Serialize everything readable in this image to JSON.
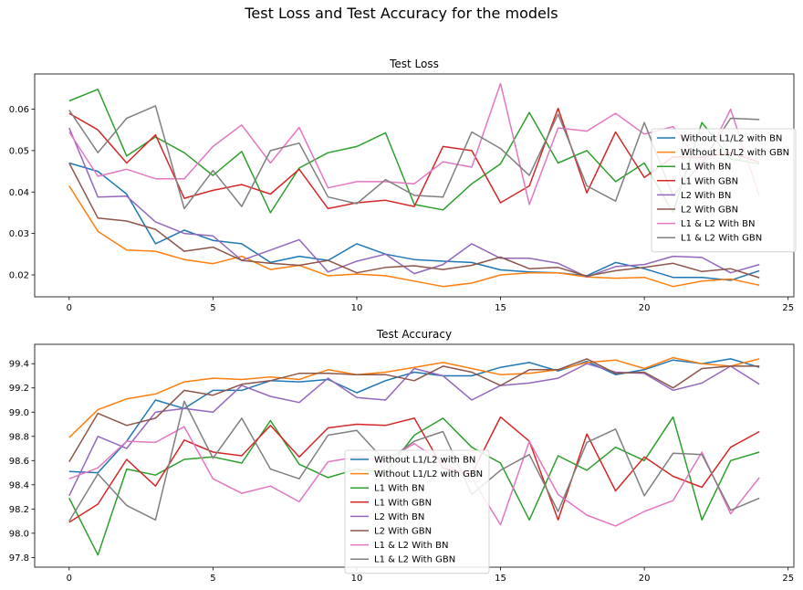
{
  "figure": {
    "suptitle": "Test Loss and Test Accuracy for the models"
  },
  "colors": [
    "#1f77b4",
    "#ff7f0e",
    "#2ca02c",
    "#d62728",
    "#9467bd",
    "#8c564b",
    "#e377c2",
    "#7f7f7f"
  ],
  "chart_data": [
    {
      "type": "line",
      "title": "Test Loss",
      "xlabel": "",
      "ylabel": "",
      "xlim": [
        -1.2,
        25.2
      ],
      "ylim": [
        0.0147,
        0.0685
      ],
      "xticks": [
        0,
        5,
        10,
        15,
        20,
        25
      ],
      "yticks": [
        0.02,
        0.03,
        0.04,
        0.05,
        0.06
      ],
      "ytick_labels": [
        "0.02",
        "0.03",
        "0.04",
        "0.05",
        "0.06"
      ],
      "legend": "center-right",
      "grid": false,
      "x": [
        0,
        1,
        2,
        3,
        4,
        5,
        6,
        7,
        8,
        9,
        10,
        11,
        12,
        13,
        14,
        15,
        16,
        17,
        18,
        19,
        20,
        21,
        22,
        23,
        24
      ],
      "series": [
        {
          "name": "Without L1/L2 with BN",
          "values": [
            0.047,
            0.045,
            0.0395,
            0.0275,
            0.0308,
            0.0283,
            0.0275,
            0.023,
            0.0245,
            0.0235,
            0.0275,
            0.025,
            0.0237,
            0.0233,
            0.023,
            0.0212,
            0.0207,
            0.0205,
            0.0198,
            0.023,
            0.0215,
            0.0194,
            0.0194,
            0.0187,
            0.021
          ]
        },
        {
          "name": "Without L1/L2 with GBN",
          "values": [
            0.0415,
            0.0305,
            0.026,
            0.0257,
            0.0237,
            0.0227,
            0.0245,
            0.0213,
            0.0223,
            0.0198,
            0.0202,
            0.0198,
            0.0185,
            0.0172,
            0.018,
            0.02,
            0.0205,
            0.0205,
            0.0195,
            0.0192,
            0.0194,
            0.0172,
            0.0185,
            0.019,
            0.0175
          ]
        },
        {
          "name": "L1 With BN",
          "values": [
            0.062,
            0.0648,
            0.0487,
            0.0533,
            0.0495,
            0.044,
            0.0498,
            0.035,
            0.0458,
            0.0495,
            0.051,
            0.0543,
            0.037,
            0.0357,
            0.042,
            0.0468,
            0.0592,
            0.047,
            0.05,
            0.0425,
            0.047,
            0.035,
            0.0568,
            0.048,
            0.0468
          ]
        },
        {
          "name": "L1 With GBN",
          "values": [
            0.059,
            0.055,
            0.047,
            0.0538,
            0.0385,
            0.0404,
            0.0418,
            0.0395,
            0.0455,
            0.036,
            0.0374,
            0.038,
            0.0365,
            0.051,
            0.05,
            0.0374,
            0.0415,
            0.0602,
            0.0398,
            0.0545,
            0.0435,
            0.0485,
            0.0484,
            0.0495,
            0.0472
          ]
        },
        {
          "name": "L2 With BN",
          "values": [
            0.0555,
            0.0388,
            0.039,
            0.0328,
            0.03,
            0.0294,
            0.0235,
            0.026,
            0.0285,
            0.0207,
            0.0233,
            0.025,
            0.0203,
            0.0225,
            0.0275,
            0.024,
            0.024,
            0.0228,
            0.0195,
            0.022,
            0.0225,
            0.0245,
            0.0242,
            0.0205,
            0.0225
          ]
        },
        {
          "name": "L2 With GBN",
          "values": [
            0.047,
            0.0337,
            0.033,
            0.031,
            0.0257,
            0.0267,
            0.0235,
            0.0228,
            0.0223,
            0.0235,
            0.0205,
            0.0218,
            0.0222,
            0.0213,
            0.0223,
            0.0243,
            0.0215,
            0.0218,
            0.0197,
            0.021,
            0.0218,
            0.0228,
            0.0208,
            0.0215,
            0.0193
          ]
        },
        {
          "name": "L1 & L2 With BN",
          "values": [
            0.0545,
            0.0438,
            0.0455,
            0.0432,
            0.0432,
            0.051,
            0.0562,
            0.047,
            0.0556,
            0.041,
            0.0425,
            0.0425,
            0.042,
            0.0473,
            0.046,
            0.0662,
            0.037,
            0.0555,
            0.0547,
            0.059,
            0.054,
            0.0558,
            0.0462,
            0.06,
            0.039
          ]
        },
        {
          "name": "L1 & L2 With GBN",
          "values": [
            0.0598,
            0.0495,
            0.0578,
            0.0608,
            0.036,
            0.0452,
            0.0365,
            0.05,
            0.0518,
            0.0388,
            0.0372,
            0.043,
            0.0392,
            0.0388,
            0.0545,
            0.0505,
            0.044,
            0.0588,
            0.0415,
            0.0378,
            0.0568,
            0.039,
            0.0472,
            0.0578,
            0.0575
          ]
        }
      ]
    },
    {
      "type": "line",
      "title": "Test Accuracy",
      "xlabel": "",
      "ylabel": "",
      "xlim": [
        -1.2,
        25.2
      ],
      "ylim": [
        97.72,
        99.56
      ],
      "xticks": [
        0,
        5,
        10,
        15,
        20,
        25
      ],
      "yticks": [
        97.8,
        98.0,
        98.2,
        98.4,
        98.6,
        98.8,
        99.0,
        99.2,
        99.4
      ],
      "ytick_labels": [
        "97.8",
        "98.0",
        "98.2",
        "98.4",
        "98.6",
        "98.8",
        "99.0",
        "99.2",
        "99.4"
      ],
      "legend": "lower-center",
      "grid": false,
      "x": [
        0,
        1,
        2,
        3,
        4,
        5,
        6,
        7,
        8,
        9,
        10,
        11,
        12,
        13,
        14,
        15,
        16,
        17,
        18,
        19,
        20,
        21,
        22,
        23,
        24
      ],
      "series": [
        {
          "name": "Without L1/L2 with BN",
          "values": [
            98.51,
            98.5,
            98.76,
            99.1,
            99.03,
            99.18,
            99.18,
            99.26,
            99.25,
            99.27,
            99.16,
            99.26,
            99.33,
            99.3,
            99.3,
            99.37,
            99.41,
            99.34,
            99.42,
            99.31,
            99.35,
            99.43,
            99.4,
            99.44,
            99.37
          ]
        },
        {
          "name": "Without L1/L2 with GBN",
          "values": [
            98.79,
            99.02,
            99.11,
            99.15,
            99.25,
            99.28,
            99.27,
            99.29,
            99.27,
            99.35,
            99.31,
            99.33,
            99.37,
            99.41,
            99.36,
            99.31,
            99.32,
            99.35,
            99.41,
            99.43,
            99.36,
            99.45,
            99.4,
            99.38,
            99.44
          ]
        },
        {
          "name": "L1 With BN",
          "values": [
            98.29,
            97.82,
            98.53,
            98.48,
            98.61,
            98.63,
            98.58,
            98.93,
            98.57,
            98.46,
            98.53,
            98.5,
            98.81,
            98.95,
            98.71,
            98.58,
            98.11,
            98.64,
            98.52,
            98.71,
            98.6,
            98.96,
            98.11,
            98.6,
            98.67
          ]
        },
        {
          "name": "L1 With GBN",
          "values": [
            98.09,
            98.24,
            98.61,
            98.39,
            98.77,
            98.67,
            98.64,
            98.89,
            98.63,
            98.87,
            98.9,
            98.89,
            98.95,
            98.54,
            98.49,
            98.96,
            98.76,
            98.11,
            98.82,
            98.35,
            98.63,
            98.47,
            98.38,
            98.71,
            98.84
          ]
        },
        {
          "name": "L2 With BN",
          "values": [
            98.31,
            98.8,
            98.7,
            99.0,
            99.03,
            99.0,
            99.22,
            99.13,
            99.08,
            99.28,
            99.12,
            99.1,
            99.36,
            99.3,
            99.1,
            99.22,
            99.24,
            99.28,
            99.4,
            99.33,
            99.32,
            99.18,
            99.24,
            99.38,
            99.23
          ]
        },
        {
          "name": "L2 With GBN",
          "values": [
            98.59,
            98.99,
            98.89,
            98.95,
            99.18,
            99.14,
            99.23,
            99.26,
            99.32,
            99.32,
            99.31,
            99.31,
            99.26,
            99.38,
            99.33,
            99.22,
            99.35,
            99.35,
            99.44,
            99.32,
            99.33,
            99.2,
            99.36,
            99.38,
            99.38
          ]
        },
        {
          "name": "L1 & L2 With BN",
          "values": [
            98.45,
            98.54,
            98.76,
            98.75,
            98.88,
            98.45,
            98.33,
            98.39,
            98.26,
            98.59,
            98.63,
            98.6,
            98.74,
            98.58,
            98.46,
            98.07,
            98.76,
            98.32,
            98.15,
            98.06,
            98.18,
            98.27,
            98.67,
            98.16,
            98.46
          ]
        },
        {
          "name": "L1 & L2 With GBN",
          "values": [
            98.1,
            98.49,
            98.23,
            98.11,
            99.09,
            98.62,
            98.95,
            98.53,
            98.45,
            98.81,
            98.85,
            98.59,
            98.76,
            98.84,
            98.32,
            98.52,
            98.65,
            98.18,
            98.75,
            98.86,
            98.31,
            98.66,
            98.65,
            98.19,
            98.29
          ]
        }
      ]
    }
  ]
}
